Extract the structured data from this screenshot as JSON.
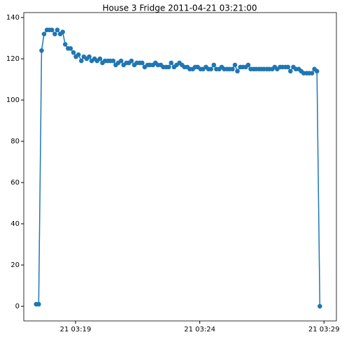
{
  "chart_data": {
    "type": "line",
    "title": "House 3 Fridge 2011-04-21 03:21:00",
    "x": [
      "2011-04-21 03:17:25",
      "2011-04-21 03:17:31",
      "2011-04-21 03:17:38",
      "2011-04-21 03:17:44",
      "2011-04-21 03:17:51",
      "2011-04-21 03:17:57",
      "2011-04-21 03:18:03",
      "2011-04-21 03:18:10",
      "2011-04-21 03:18:16",
      "2011-04-21 03:18:23",
      "2011-04-21 03:18:29",
      "2011-04-21 03:18:35",
      "2011-04-21 03:18:42",
      "2011-04-21 03:18:48",
      "2011-04-21 03:18:55",
      "2011-04-21 03:19:01",
      "2011-04-21 03:19:07",
      "2011-04-21 03:19:14",
      "2011-04-21 03:19:20",
      "2011-04-21 03:19:27",
      "2011-04-21 03:19:33",
      "2011-04-21 03:19:39",
      "2011-04-21 03:19:46",
      "2011-04-21 03:19:52",
      "2011-04-21 03:19:59",
      "2011-04-21 03:20:05",
      "2011-04-21 03:20:11",
      "2011-04-21 03:20:18",
      "2011-04-21 03:20:24",
      "2011-04-21 03:20:31",
      "2011-04-21 03:20:37",
      "2011-04-21 03:20:43",
      "2011-04-21 03:20:50",
      "2011-04-21 03:20:56",
      "2011-04-21 03:21:03",
      "2011-04-21 03:21:09",
      "2011-04-21 03:21:15",
      "2011-04-21 03:21:22",
      "2011-04-21 03:21:28",
      "2011-04-21 03:21:35",
      "2011-04-21 03:21:41",
      "2011-04-21 03:21:47",
      "2011-04-21 03:21:54",
      "2011-04-21 03:22:00",
      "2011-04-21 03:22:07",
      "2011-04-21 03:22:13",
      "2011-04-21 03:22:19",
      "2011-04-21 03:22:26",
      "2011-04-21 03:22:32",
      "2011-04-21 03:22:39",
      "2011-04-21 03:22:45",
      "2011-04-21 03:22:51",
      "2011-04-21 03:22:58",
      "2011-04-21 03:23:04",
      "2011-04-21 03:23:11",
      "2011-04-21 03:23:17",
      "2011-04-21 03:23:23",
      "2011-04-21 03:23:30",
      "2011-04-21 03:23:36",
      "2011-04-21 03:23:43",
      "2011-04-21 03:23:49",
      "2011-04-21 03:23:55",
      "2011-04-21 03:24:02",
      "2011-04-21 03:24:08",
      "2011-04-21 03:24:15",
      "2011-04-21 03:24:21",
      "2011-04-21 03:24:27",
      "2011-04-21 03:24:34",
      "2011-04-21 03:24:40",
      "2011-04-21 03:24:47",
      "2011-04-21 03:24:53",
      "2011-04-21 03:24:59",
      "2011-04-21 03:25:06",
      "2011-04-21 03:25:12",
      "2011-04-21 03:25:19",
      "2011-04-21 03:25:25",
      "2011-04-21 03:25:31",
      "2011-04-21 03:25:38",
      "2011-04-21 03:25:44",
      "2011-04-21 03:25:51",
      "2011-04-21 03:25:57",
      "2011-04-21 03:26:03",
      "2011-04-21 03:26:10",
      "2011-04-21 03:26:16",
      "2011-04-21 03:26:23",
      "2011-04-21 03:26:29",
      "2011-04-21 03:26:35",
      "2011-04-21 03:26:42",
      "2011-04-21 03:26:48",
      "2011-04-21 03:26:55",
      "2011-04-21 03:27:01",
      "2011-04-21 03:27:07",
      "2011-04-21 03:27:14",
      "2011-04-21 03:27:20",
      "2011-04-21 03:27:27",
      "2011-04-21 03:27:33",
      "2011-04-21 03:27:39",
      "2011-04-21 03:27:46",
      "2011-04-21 03:27:52",
      "2011-04-21 03:27:59",
      "2011-04-21 03:28:05",
      "2011-04-21 03:28:11",
      "2011-04-21 03:28:18",
      "2011-04-21 03:28:24",
      "2011-04-21 03:28:31",
      "2011-04-21 03:28:37",
      "2011-04-21 03:28:43",
      "2011-04-21 03:28:50"
    ],
    "values": [
      1,
      1,
      124,
      132,
      134,
      134,
      134,
      132,
      134,
      132,
      133,
      127,
      125,
      125,
      123,
      121,
      122,
      119,
      121,
      120,
      121,
      119,
      120,
      119,
      120,
      118,
      119,
      119,
      119,
      119,
      117,
      118,
      119,
      117,
      118,
      118,
      119,
      117,
      118,
      118,
      118,
      116,
      117,
      117,
      117,
      118,
      117,
      117,
      116,
      116,
      116,
      118,
      116,
      117,
      118,
      117,
      116,
      116,
      115,
      115,
      116,
      116,
      115,
      115,
      116,
      115,
      115,
      117,
      115,
      115,
      116,
      115,
      115,
      115,
      115,
      117,
      114,
      116,
      116,
      116,
      117,
      115,
      115,
      115,
      115,
      115,
      115,
      115,
      115,
      115,
      116,
      115,
      116,
      116,
      116,
      116,
      114,
      116,
      115,
      115,
      114,
      113,
      113,
      113,
      113,
      115,
      114,
      0
    ],
    "color": "#1f77b4",
    "xlim": [
      "2011-04-21 03:16:55",
      "2011-04-21 03:29:30"
    ],
    "xticks": [
      {
        "value": "2011-04-21 03:19:00",
        "label": "21 03:19"
      },
      {
        "value": "2011-04-21 03:24:00",
        "label": "21 03:24"
      },
      {
        "value": "2011-04-21 03:29:00",
        "label": "21 03:29"
      }
    ],
    "ylim": [
      -7.1,
      142.4
    ],
    "yticks": [
      0,
      20,
      40,
      60,
      80,
      100,
      120,
      140
    ],
    "grid": false
  }
}
